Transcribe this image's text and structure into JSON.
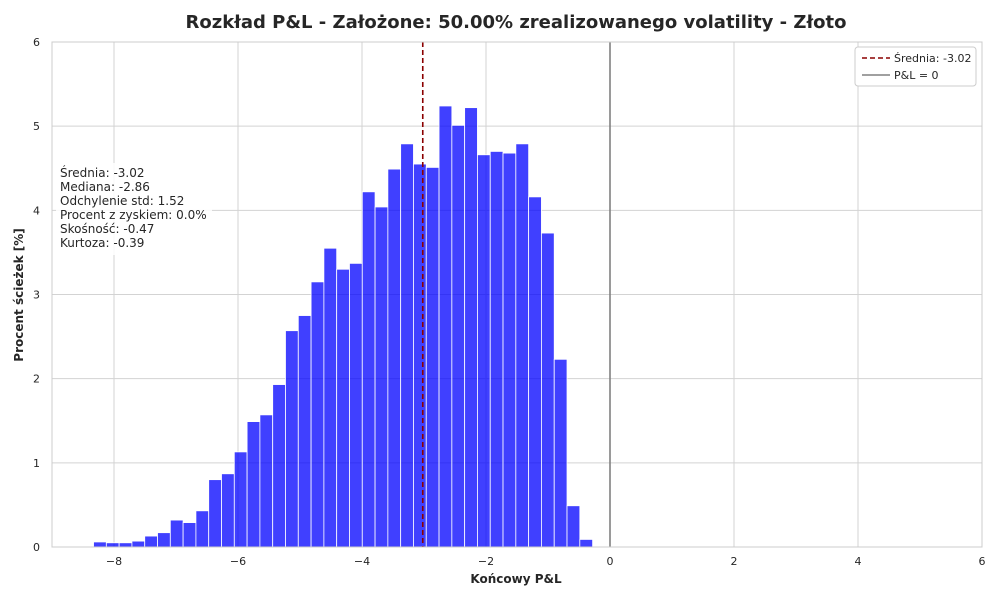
{
  "chart_data": {
    "type": "bar",
    "title": "Rozkład P&L - Założone: 50.00% zrealizowanego volatility - Złoto",
    "xlabel": "Końcowy P&L",
    "ylabel": "Procent ścieżek [%]",
    "xlim": [
      -9,
      6
    ],
    "ylim": [
      0,
      6
    ],
    "xticks": [
      -8,
      -6,
      -4,
      -2,
      0,
      2,
      4,
      6
    ],
    "xtick_labels": [
      "−8",
      "−6",
      "−4",
      "−2",
      "0",
      "2",
      "4",
      "6"
    ],
    "yticks": [
      0,
      1,
      2,
      3,
      4,
      5,
      6
    ],
    "ytick_labels": [
      "0",
      "1",
      "2",
      "3",
      "4",
      "5",
      "6"
    ],
    "grid": true,
    "bin_start": -8.33,
    "bin_width": 0.2064,
    "values": [
      0.06,
      0.05,
      0.05,
      0.07,
      0.13,
      0.17,
      0.32,
      0.29,
      0.43,
      0.8,
      0.87,
      1.13,
      1.49,
      1.57,
      1.93,
      2.57,
      2.75,
      3.15,
      3.55,
      3.3,
      3.37,
      4.22,
      4.04,
      4.49,
      4.79,
      4.55,
      4.51,
      5.24,
      5.01,
      5.22,
      4.66,
      4.7,
      4.68,
      4.79,
      4.16,
      3.73,
      2.23,
      0.49,
      0.09
    ],
    "bar_color": "#0000ff",
    "mean_line": {
      "x": -3.02,
      "color": "#8b0000",
      "label": "Średnia: -3.02"
    },
    "zero_line": {
      "x": 0,
      "color": "#808080",
      "label": "P&L = 0"
    },
    "legend_position": "top-right",
    "stats": [
      "Średnia: -3.02",
      "Mediana: -2.86",
      "Odchylenie std: 1.52",
      "Procent z zyskiem: 0.0%",
      "Skośność: -0.47",
      "Kurtoza: -0.39"
    ]
  }
}
